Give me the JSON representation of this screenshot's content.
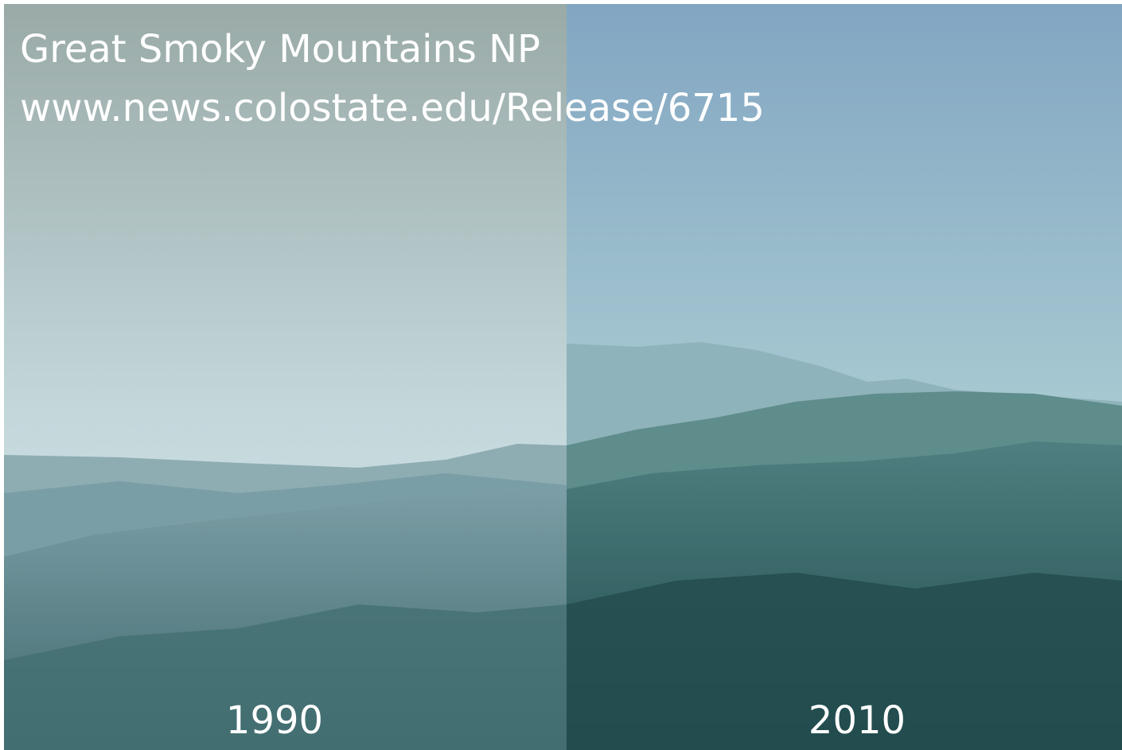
{
  "header": {
    "title": "Great Smoky Mountains NP",
    "source": "www.news.colostate.edu/Release/6715"
  },
  "panels": [
    {
      "label": "1990"
    },
    {
      "label": "2010"
    }
  ]
}
